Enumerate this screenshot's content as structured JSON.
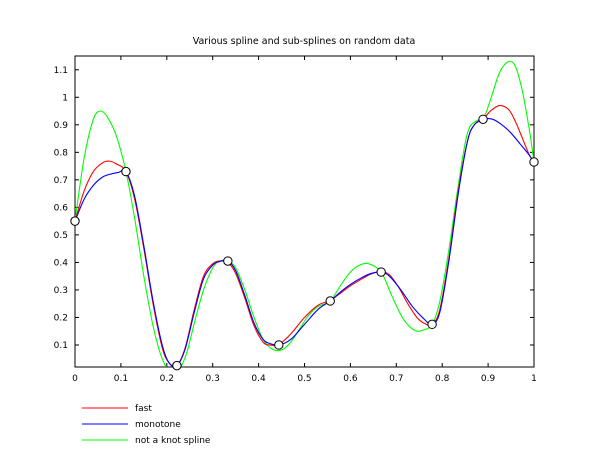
{
  "chart_data": {
    "type": "line",
    "title": "Various spline and sub-splines on random data",
    "xlabel": "",
    "ylabel": "",
    "xlim": [
      0,
      1
    ],
    "ylim": [
      0.02,
      1.15
    ],
    "xticks": [
      "0",
      "0.1",
      "0.2",
      "0.3",
      "0.4",
      "0.5",
      "0.6",
      "0.7",
      "0.8",
      "0.9",
      "1"
    ],
    "xtick_values": [
      0,
      0.1,
      0.2,
      0.3,
      0.4,
      0.5,
      0.6,
      0.7,
      0.8,
      0.9,
      1
    ],
    "yticks": [
      "0.1",
      "0.2",
      "0.3",
      "0.4",
      "0.5",
      "0.6",
      "0.7",
      "0.8",
      "0.9",
      "1",
      "1.1"
    ],
    "ytick_values": [
      0.1,
      0.2,
      0.3,
      0.4,
      0.5,
      0.6,
      0.7,
      0.8,
      0.9,
      1.0,
      1.1
    ],
    "grid": false,
    "legend_position": "bottom-left",
    "data_points": {
      "name": "",
      "x": [
        0,
        0.111,
        0.222,
        0.333,
        0.444,
        0.556,
        0.667,
        0.778,
        0.889,
        1.0
      ],
      "y": [
        0.55,
        0.73,
        0.025,
        0.405,
        0.1,
        0.26,
        0.365,
        0.175,
        0.92,
        0.765
      ]
    },
    "series": [
      {
        "name": "fast",
        "color": "#ff0000",
        "x": [
          0,
          0.02,
          0.04,
          0.06,
          0.075,
          0.09,
          0.111,
          0.13,
          0.15,
          0.17,
          0.19,
          0.205,
          0.222,
          0.24,
          0.26,
          0.28,
          0.3,
          0.315,
          0.333,
          0.35,
          0.37,
          0.39,
          0.41,
          0.425,
          0.444,
          0.47,
          0.5,
          0.53,
          0.556,
          0.58,
          0.6,
          0.625,
          0.645,
          0.667,
          0.685,
          0.705,
          0.725,
          0.745,
          0.762,
          0.778,
          0.795,
          0.815,
          0.835,
          0.855,
          0.87,
          0.889,
          0.905,
          0.925,
          0.945,
          0.96,
          0.975,
          0.99,
          1.0
        ],
        "y": [
          0.55,
          0.66,
          0.73,
          0.762,
          0.768,
          0.758,
          0.73,
          0.63,
          0.45,
          0.25,
          0.09,
          0.035,
          0.025,
          0.09,
          0.23,
          0.35,
          0.395,
          0.405,
          0.4,
          0.36,
          0.27,
          0.17,
          0.11,
          0.1,
          0.102,
          0.14,
          0.2,
          0.245,
          0.262,
          0.29,
          0.315,
          0.34,
          0.358,
          0.366,
          0.355,
          0.31,
          0.25,
          0.2,
          0.178,
          0.175,
          0.23,
          0.42,
          0.66,
          0.84,
          0.9,
          0.92,
          0.95,
          0.97,
          0.955,
          0.91,
          0.85,
          0.79,
          0.765
        ]
      },
      {
        "name": "monotone",
        "color": "#0000ff",
        "x": [
          0,
          0.02,
          0.04,
          0.06,
          0.08,
          0.095,
          0.111,
          0.13,
          0.15,
          0.17,
          0.19,
          0.205,
          0.222,
          0.24,
          0.26,
          0.28,
          0.3,
          0.315,
          0.333,
          0.35,
          0.37,
          0.39,
          0.41,
          0.425,
          0.444,
          0.47,
          0.5,
          0.53,
          0.556,
          0.58,
          0.6,
          0.625,
          0.645,
          0.667,
          0.685,
          0.71,
          0.735,
          0.76,
          0.778,
          0.795,
          0.815,
          0.835,
          0.855,
          0.87,
          0.889,
          0.91,
          0.93,
          0.95,
          0.97,
          0.985,
          1.0
        ],
        "y": [
          0.55,
          0.63,
          0.68,
          0.71,
          0.722,
          0.727,
          0.73,
          0.64,
          0.46,
          0.26,
          0.1,
          0.035,
          0.025,
          0.085,
          0.22,
          0.34,
          0.39,
          0.403,
          0.405,
          0.37,
          0.28,
          0.18,
          0.12,
          0.105,
          0.1,
          0.12,
          0.175,
          0.23,
          0.26,
          0.295,
          0.32,
          0.345,
          0.36,
          0.365,
          0.35,
          0.3,
          0.24,
          0.195,
          0.175,
          0.22,
          0.41,
          0.65,
          0.84,
          0.9,
          0.92,
          0.92,
          0.9,
          0.87,
          0.83,
          0.8,
          0.765
        ]
      },
      {
        "name": "not a knot spline",
        "color": "#00ff00",
        "x": [
          0,
          0.02,
          0.04,
          0.055,
          0.07,
          0.09,
          0.111,
          0.13,
          0.15,
          0.17,
          0.19,
          0.21,
          0.23,
          0.245,
          0.26,
          0.28,
          0.3,
          0.315,
          0.333,
          0.35,
          0.37,
          0.39,
          0.41,
          0.43,
          0.45,
          0.47,
          0.49,
          0.51,
          0.53,
          0.556,
          0.58,
          0.6,
          0.62,
          0.64,
          0.667,
          0.69,
          0.715,
          0.74,
          0.76,
          0.778,
          0.795,
          0.815,
          0.835,
          0.855,
          0.875,
          0.889,
          0.905,
          0.925,
          0.945,
          0.96,
          0.975,
          0.99,
          1.0
        ],
        "y": [
          0.55,
          0.78,
          0.92,
          0.95,
          0.93,
          0.86,
          0.73,
          0.56,
          0.35,
          0.17,
          0.05,
          0.0,
          0.02,
          0.08,
          0.18,
          0.3,
          0.38,
          0.405,
          0.405,
          0.38,
          0.3,
          0.2,
          0.12,
          0.085,
          0.082,
          0.11,
          0.16,
          0.21,
          0.24,
          0.26,
          0.32,
          0.365,
          0.39,
          0.395,
          0.365,
          0.28,
          0.195,
          0.153,
          0.155,
          0.175,
          0.26,
          0.45,
          0.68,
          0.87,
          0.915,
          0.92,
          0.99,
          1.09,
          1.13,
          1.11,
          1.02,
          0.88,
          0.765
        ]
      }
    ]
  }
}
